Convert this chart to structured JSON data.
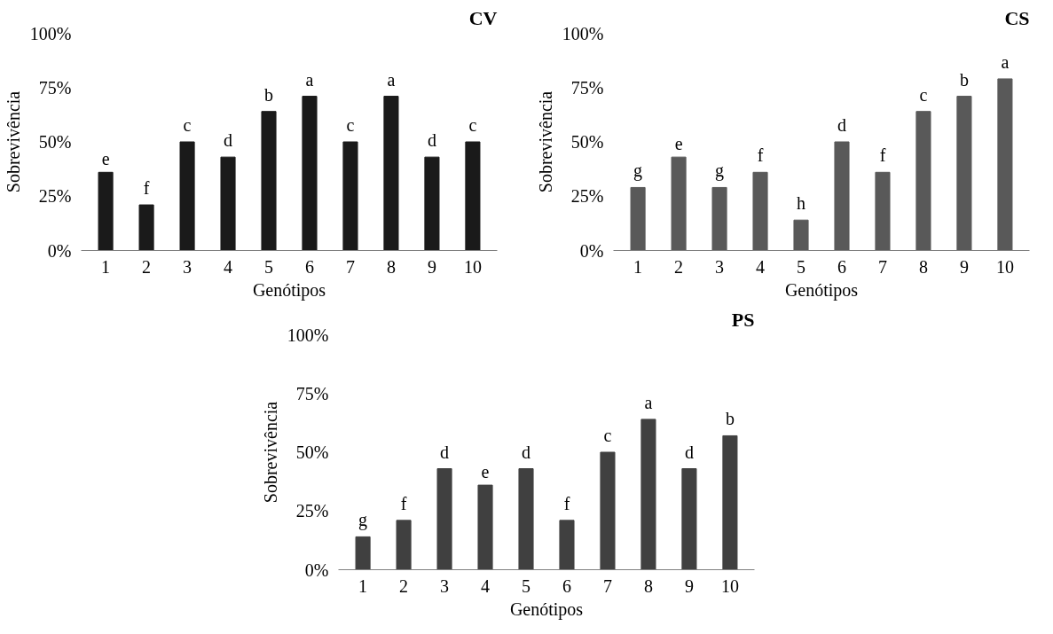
{
  "chart_data": [
    {
      "type": "bar",
      "title": "CV",
      "xlabel": "Genótipos",
      "ylabel": "Sobrevivência",
      "categories": [
        "1",
        "2",
        "3",
        "4",
        "5",
        "6",
        "7",
        "8",
        "9",
        "10"
      ],
      "values": [
        36,
        21,
        50,
        43,
        64,
        71,
        50,
        71,
        43,
        50
      ],
      "color": "#1a1a1a",
      "value_labels": [
        "e",
        "f",
        "c",
        "d",
        "b",
        "a",
        "c",
        "a",
        "d",
        "c"
      ],
      "ylim": [
        0,
        100
      ],
      "yticks": [
        {
          "value": 0,
          "label": "0%"
        },
        {
          "value": 25,
          "label": "25%"
        },
        {
          "value": 50,
          "label": "50%"
        },
        {
          "value": 75,
          "label": "75%"
        },
        {
          "value": 100,
          "label": "100%"
        }
      ],
      "grid": false
    },
    {
      "type": "bar",
      "title": "CS",
      "xlabel": "Genótipos",
      "ylabel": "Sobrevivência",
      "categories": [
        "1",
        "2",
        "3",
        "4",
        "5",
        "6",
        "7",
        "8",
        "9",
        "10"
      ],
      "values": [
        29,
        43,
        29,
        36,
        14,
        50,
        36,
        64,
        71,
        79
      ],
      "color": "#595959",
      "value_labels": [
        "g",
        "e",
        "g",
        "f",
        "h",
        "d",
        "f",
        "c",
        "b",
        "a"
      ],
      "ylim": [
        0,
        100
      ],
      "yticks": [
        {
          "value": 0,
          "label": "0%"
        },
        {
          "value": 25,
          "label": "25%"
        },
        {
          "value": 50,
          "label": "50%"
        },
        {
          "value": 75,
          "label": "75%"
        },
        {
          "value": 100,
          "label": "100%"
        }
      ],
      "grid": false
    },
    {
      "type": "bar",
      "title": "PS",
      "xlabel": "Genótipos",
      "ylabel": "Sobrevivência",
      "categories": [
        "1",
        "2",
        "3",
        "4",
        "5",
        "6",
        "7",
        "8",
        "9",
        "10"
      ],
      "values": [
        14,
        21,
        43,
        36,
        43,
        21,
        50,
        64,
        43,
        57
      ],
      "color": "#404040",
      "value_labels": [
        "g",
        "f",
        "d",
        "e",
        "d",
        "f",
        "c",
        "a",
        "d",
        "b"
      ],
      "ylim": [
        0,
        100
      ],
      "yticks": [
        {
          "value": 0,
          "label": "0%"
        },
        {
          "value": 25,
          "label": "25%"
        },
        {
          "value": 50,
          "label": "50%"
        },
        {
          "value": 75,
          "label": "75%"
        },
        {
          "value": 100,
          "label": "100%"
        }
      ],
      "grid": false
    }
  ]
}
